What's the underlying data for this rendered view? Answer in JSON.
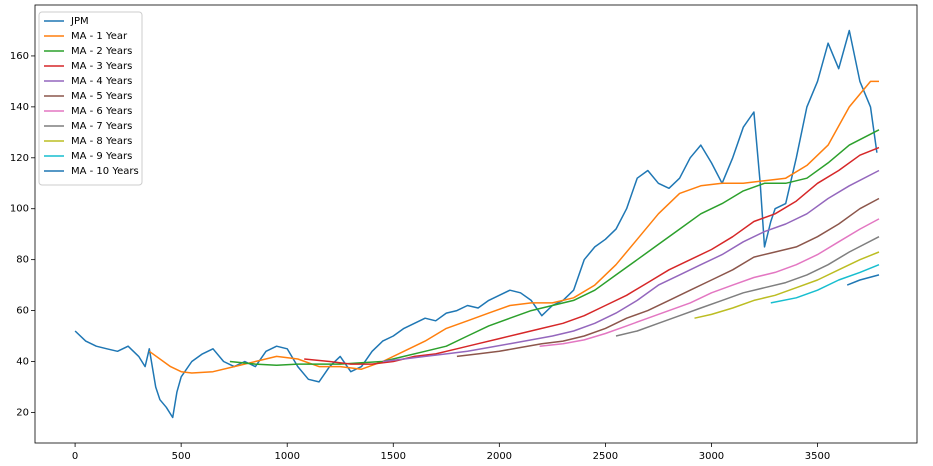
{
  "chart_data": {
    "type": "line",
    "xlim": [
      -189,
      3969
    ],
    "ylim": [
      8,
      180
    ],
    "xticks": [
      0,
      500,
      1000,
      1500,
      2000,
      2500,
      3000,
      3500
    ],
    "yticks": [
      20,
      40,
      60,
      80,
      100,
      120,
      140,
      160
    ],
    "legend": "upper left",
    "series": [
      {
        "name": "JPM",
        "color": "#1f77b4",
        "x": [
          0,
          50,
          100,
          150,
          200,
          250,
          300,
          330,
          350,
          380,
          400,
          430,
          460,
          480,
          500,
          550,
          600,
          650,
          700,
          750,
          800,
          850,
          900,
          950,
          1000,
          1050,
          1100,
          1150,
          1200,
          1250,
          1300,
          1350,
          1400,
          1450,
          1500,
          1550,
          1600,
          1650,
          1700,
          1750,
          1800,
          1850,
          1900,
          1950,
          2000,
          2050,
          2100,
          2150,
          2200,
          2250,
          2300,
          2350,
          2400,
          2450,
          2500,
          2550,
          2600,
          2650,
          2700,
          2750,
          2800,
          2850,
          2900,
          2950,
          3000,
          3050,
          3100,
          3150,
          3200,
          3230,
          3250,
          3280,
          3300,
          3350,
          3400,
          3450,
          3500,
          3550,
          3600,
          3650,
          3700,
          3750,
          3780
        ],
        "values": [
          52,
          48,
          46,
          45,
          44,
          46,
          42,
          38,
          45,
          30,
          25,
          22,
          18,
          28,
          34,
          40,
          43,
          45,
          40,
          38,
          40,
          38,
          44,
          46,
          45,
          38,
          33,
          32,
          38,
          42,
          36,
          38,
          44,
          48,
          50,
          53,
          55,
          57,
          56,
          59,
          60,
          62,
          61,
          64,
          66,
          68,
          67,
          64,
          58,
          62,
          64,
          68,
          80,
          85,
          88,
          92,
          100,
          112,
          115,
          110,
          108,
          112,
          120,
          125,
          118,
          110,
          120,
          132,
          138,
          110,
          85,
          95,
          100,
          102,
          120,
          140,
          150,
          165,
          155,
          170,
          150,
          140,
          122
        ]
      },
      {
        "name": "MA - 1 Year",
        "color": "#ff7f0e",
        "x": [
          350,
          450,
          500,
          550,
          650,
          750,
          850,
          950,
          1050,
          1150,
          1250,
          1350,
          1450,
          1550,
          1650,
          1750,
          1850,
          1950,
          2050,
          2150,
          2250,
          2350,
          2450,
          2550,
          2650,
          2750,
          2850,
          2950,
          3050,
          3150,
          3250,
          3350,
          3450,
          3550,
          3650,
          3750,
          3790
        ],
        "values": [
          44,
          38,
          36,
          35.5,
          36,
          38,
          40,
          42,
          41,
          38,
          38,
          37,
          40,
          44,
          48,
          53,
          56,
          59,
          62,
          63,
          63,
          65,
          70,
          78,
          88,
          98,
          106,
          109,
          110,
          110,
          111,
          112,
          117,
          125,
          140,
          150,
          150
        ]
      },
      {
        "name": "MA - 2 Years",
        "color": "#2ca02c",
        "x": [
          730,
          850,
          950,
          1050,
          1150,
          1250,
          1350,
          1450,
          1550,
          1650,
          1750,
          1850,
          1950,
          2050,
          2150,
          2250,
          2350,
          2450,
          2550,
          2650,
          2750,
          2850,
          2950,
          3050,
          3150,
          3250,
          3350,
          3450,
          3550,
          3650,
          3790
        ],
        "values": [
          40,
          39,
          38.5,
          39,
          39,
          39,
          39.5,
          40,
          42,
          44,
          46,
          50,
          54,
          57,
          60,
          62,
          64,
          68,
          74,
          80,
          86,
          92,
          98,
          102,
          107,
          110,
          110,
          112,
          118,
          125,
          131
        ]
      },
      {
        "name": "MA - 3 Years",
        "color": "#d62728",
        "x": [
          1080,
          1200,
          1300,
          1400,
          1500,
          1600,
          1700,
          1800,
          1900,
          2000,
          2100,
          2200,
          2300,
          2400,
          2500,
          2600,
          2700,
          2800,
          2900,
          3000,
          3100,
          3200,
          3300,
          3400,
          3500,
          3600,
          3700,
          3790
        ],
        "values": [
          41,
          40,
          39,
          39,
          40,
          42,
          43,
          45,
          47,
          49,
          51,
          53,
          55,
          58,
          62,
          66,
          71,
          76,
          80,
          84,
          89,
          95,
          98,
          103,
          110,
          115,
          121,
          124
        ]
      },
      {
        "name": "MA - 4 Years",
        "color": "#9467bd",
        "x": [
          1450,
          1550,
          1650,
          1750,
          1850,
          1950,
          2050,
          2150,
          2250,
          2350,
          2450,
          2550,
          2650,
          2750,
          2850,
          2950,
          3050,
          3150,
          3250,
          3350,
          3450,
          3550,
          3650,
          3790
        ],
        "values": [
          40,
          41,
          42,
          43,
          44,
          45.5,
          47,
          48.5,
          50,
          52,
          55,
          59,
          64,
          70,
          74,
          78,
          82,
          87,
          91,
          94,
          98,
          104,
          109,
          115
        ]
      },
      {
        "name": "MA - 5 Years",
        "color": "#8c564b",
        "x": [
          1800,
          1900,
          2000,
          2100,
          2200,
          2300,
          2400,
          2500,
          2600,
          2700,
          2800,
          2900,
          3000,
          3100,
          3200,
          3300,
          3400,
          3500,
          3600,
          3700,
          3790
        ],
        "values": [
          42,
          43,
          44,
          45.5,
          47,
          48,
          50,
          53,
          57,
          60,
          64,
          68,
          72,
          76,
          81,
          83,
          85,
          89,
          94,
          100,
          104
        ]
      },
      {
        "name": "MA - 6 Years",
        "color": "#e377c2",
        "x": [
          2190,
          2300,
          2400,
          2500,
          2600,
          2700,
          2800,
          2900,
          3000,
          3100,
          3200,
          3300,
          3400,
          3500,
          3600,
          3700,
          3790
        ],
        "values": [
          46,
          47,
          48.5,
          51,
          54,
          57,
          60,
          63,
          67,
          70,
          73,
          75,
          78,
          82,
          87,
          92,
          96
        ]
      },
      {
        "name": "MA - 7 Years",
        "color": "#7f7f7f",
        "x": [
          2550,
          2650,
          2750,
          2850,
          2950,
          3050,
          3150,
          3250,
          3350,
          3450,
          3550,
          3650,
          3790
        ],
        "values": [
          50,
          52,
          55,
          58,
          61,
          64,
          67,
          69,
          71,
          74,
          78,
          83,
          89
        ]
      },
      {
        "name": "MA - 8 Years",
        "color": "#bcbd22",
        "x": [
          2920,
          3000,
          3100,
          3200,
          3300,
          3400,
          3500,
          3600,
          3700,
          3790
        ],
        "values": [
          57,
          58.5,
          61,
          64,
          66,
          69,
          72,
          76,
          80,
          83
        ]
      },
      {
        "name": "MA - 9 Years",
        "color": "#17becf",
        "x": [
          3280,
          3400,
          3500,
          3600,
          3700,
          3790
        ],
        "values": [
          63,
          65,
          68,
          72,
          75,
          78
        ]
      },
      {
        "name": "MA - 10 Years",
        "color": "#1f77b4",
        "x": [
          3640,
          3700,
          3790
        ],
        "values": [
          70,
          72,
          74
        ]
      }
    ]
  }
}
